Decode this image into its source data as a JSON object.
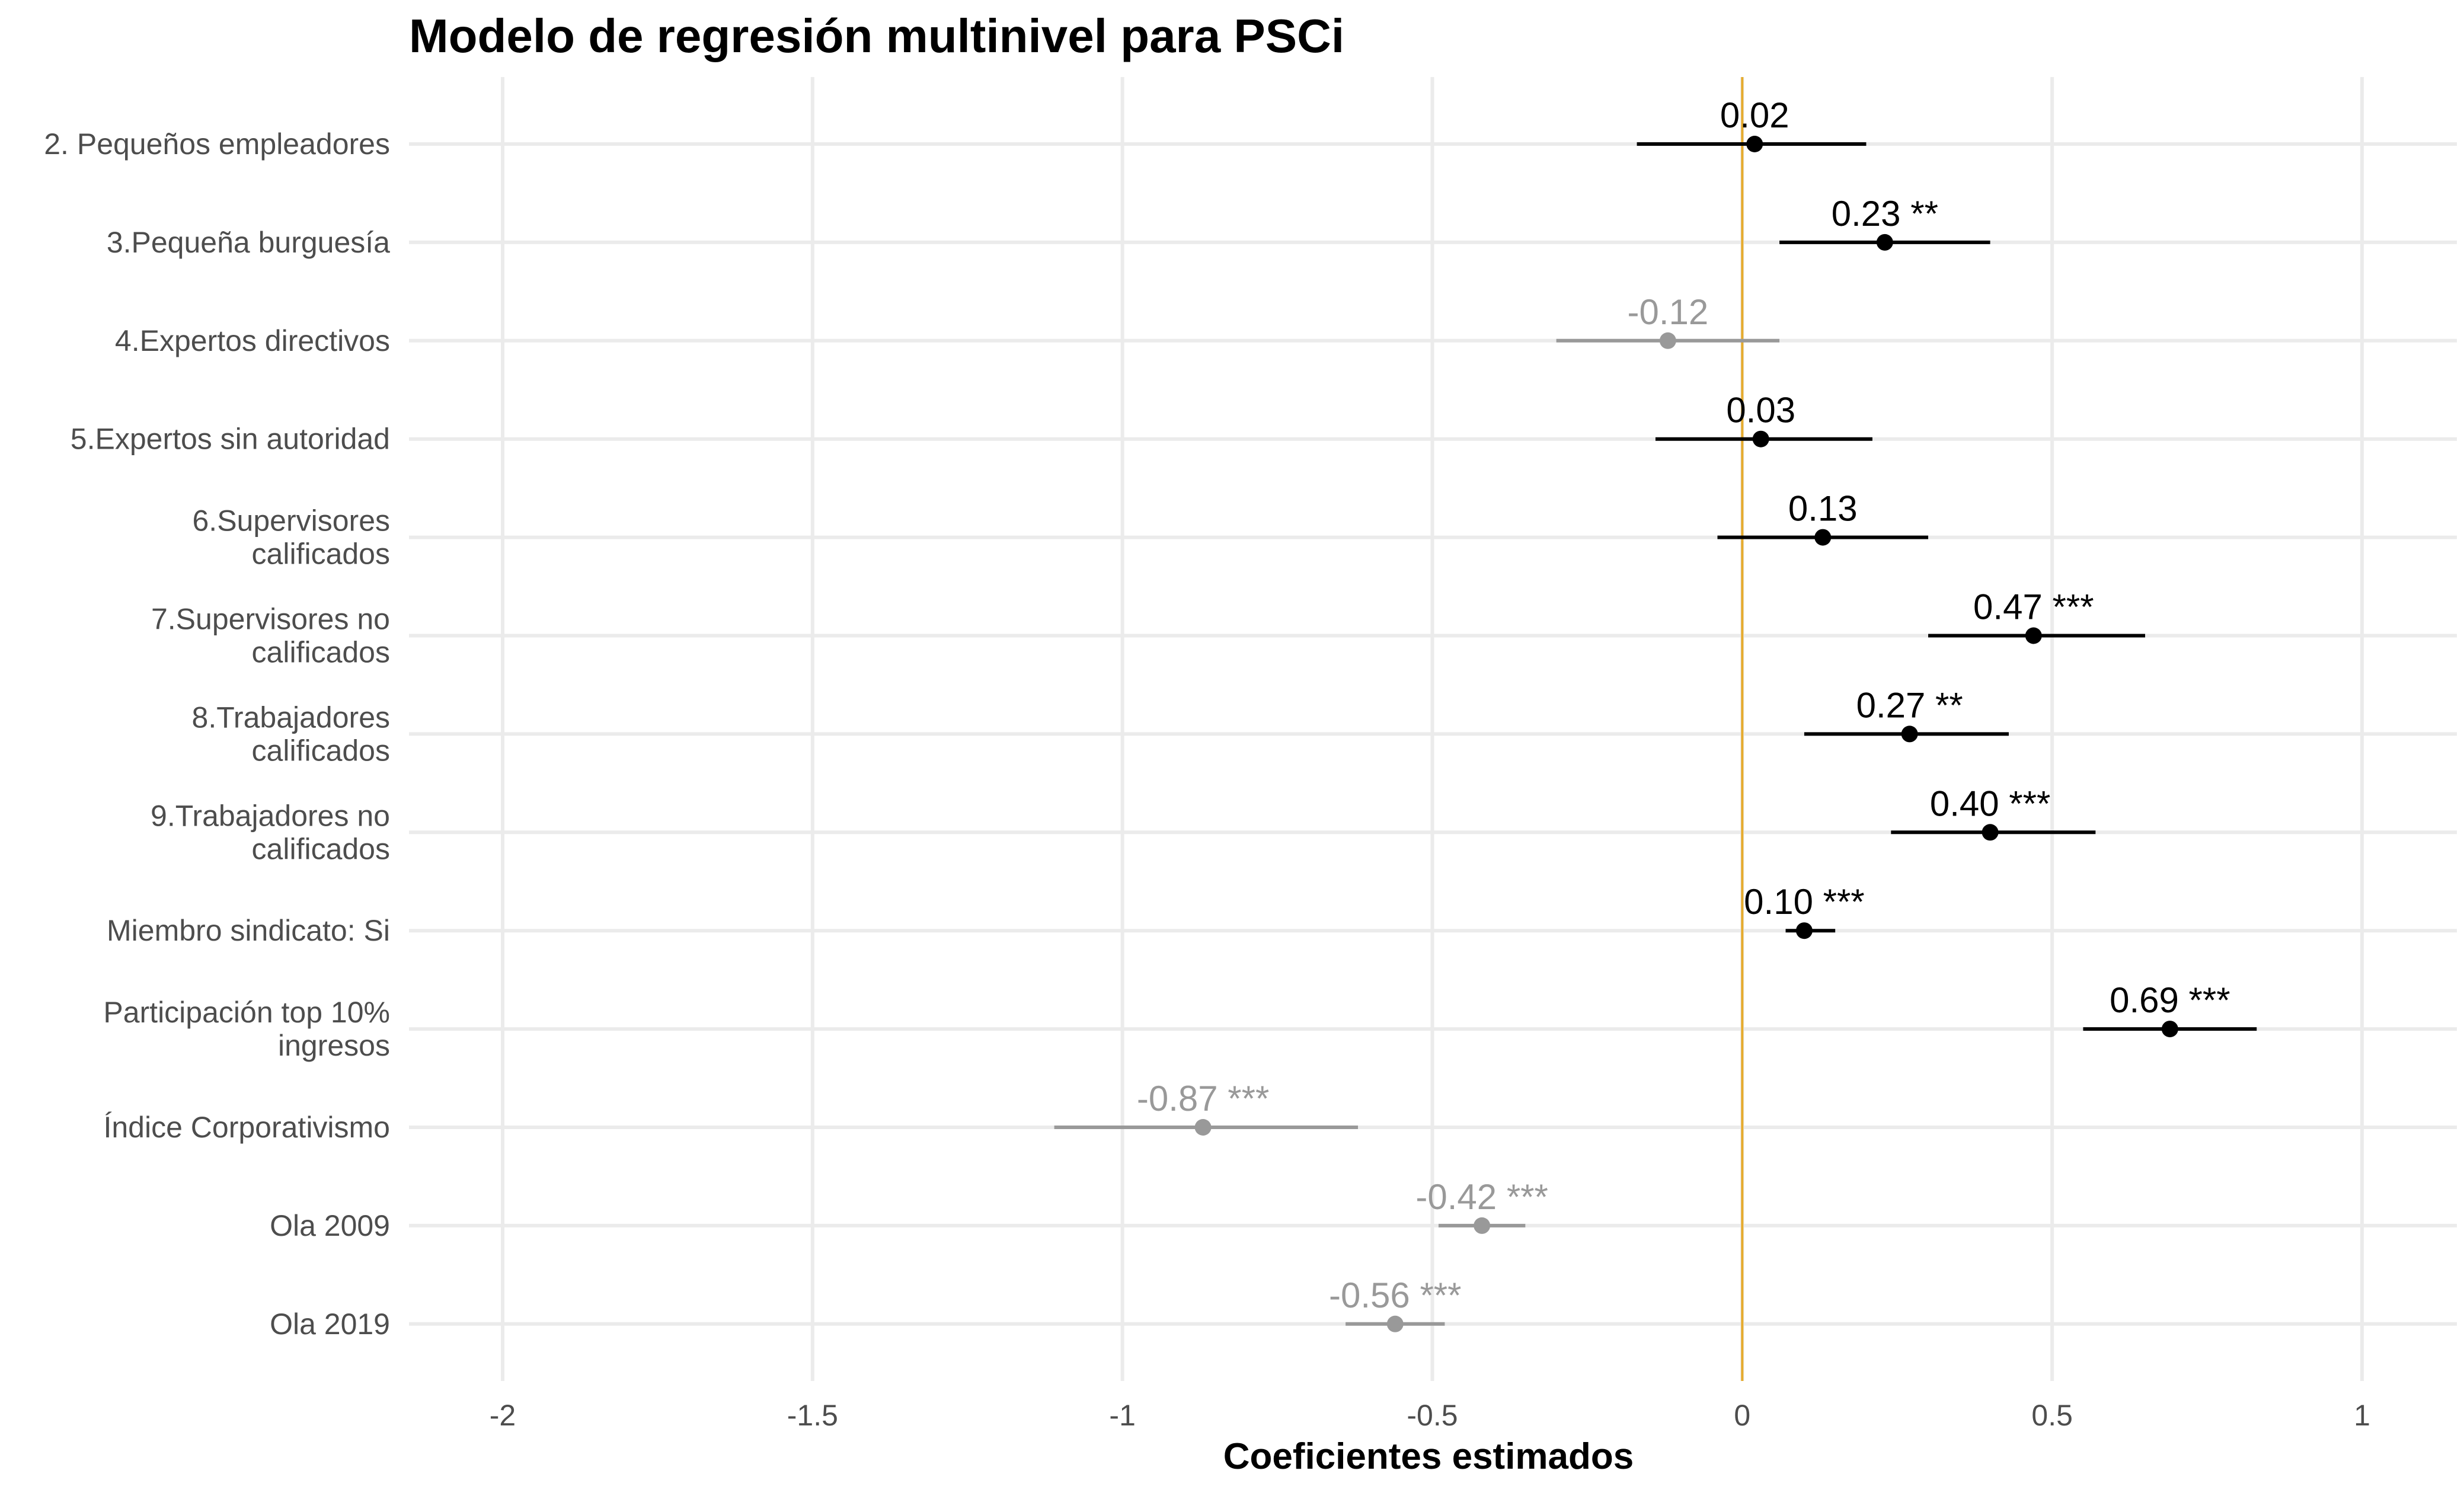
{
  "chart_data": {
    "type": "scatter",
    "title": "Modelo de regresión multinivel para PSCi",
    "xlabel": "Coeficientes estimados",
    "ylabel": "",
    "xlim": [
      -2.15,
      1.15
    ],
    "xticks": [
      -2,
      -1.5,
      -1,
      -0.5,
      0,
      0.5,
      1
    ],
    "xtick_labels": [
      "-2",
      "-1.5",
      "-1",
      "-0.5",
      "0",
      "0.5",
      "1"
    ],
    "grid": true,
    "reference_line": {
      "x": 0,
      "color": "#e6ab2d"
    },
    "colors": {
      "significant_positive": "#000000",
      "negative": "#999999"
    },
    "categories": [
      [
        "2. Pequeños empleadores"
      ],
      [
        "3.Pequeña burguesía"
      ],
      [
        "4.Expertos directivos"
      ],
      [
        "5.Expertos sin autoridad"
      ],
      [
        "6.Supervisores",
        "calificados"
      ],
      [
        "7.Supervisores no",
        "calificados"
      ],
      [
        "8.Trabajadores",
        "calificados"
      ],
      [
        "9.Trabajadores no",
        "calificados"
      ],
      [
        "Miembro sindicato: Si"
      ],
      [
        "Participación top 10%",
        "ingresos"
      ],
      [
        "Índice Corporativismo"
      ],
      [
        "Ola 2009"
      ],
      [
        "Ola 2019"
      ]
    ],
    "series": [
      {
        "estimates": [
          0.02,
          0.23,
          -0.12,
          0.03,
          0.13,
          0.47,
          0.27,
          0.4,
          0.1,
          0.69,
          -0.87,
          -0.42,
          -0.56
        ],
        "ci_low": [
          -0.17,
          0.06,
          -0.3,
          -0.14,
          -0.04,
          0.3,
          0.1,
          0.24,
          0.07,
          0.55,
          -1.11,
          -0.49,
          -0.64
        ],
        "ci_high": [
          0.2,
          0.4,
          0.06,
          0.21,
          0.3,
          0.65,
          0.43,
          0.57,
          0.15,
          0.83,
          -0.62,
          -0.35,
          -0.48
        ],
        "labels": [
          "0.02",
          "0.23 **",
          "-0.12",
          "0.03",
          "0.13",
          "0.47 ***",
          "0.27 **",
          "0.40 ***",
          "0.10 ***",
          "0.69 ***",
          "-0.87 ***",
          "-0.42 ***",
          "-0.56 ***"
        ]
      }
    ]
  }
}
